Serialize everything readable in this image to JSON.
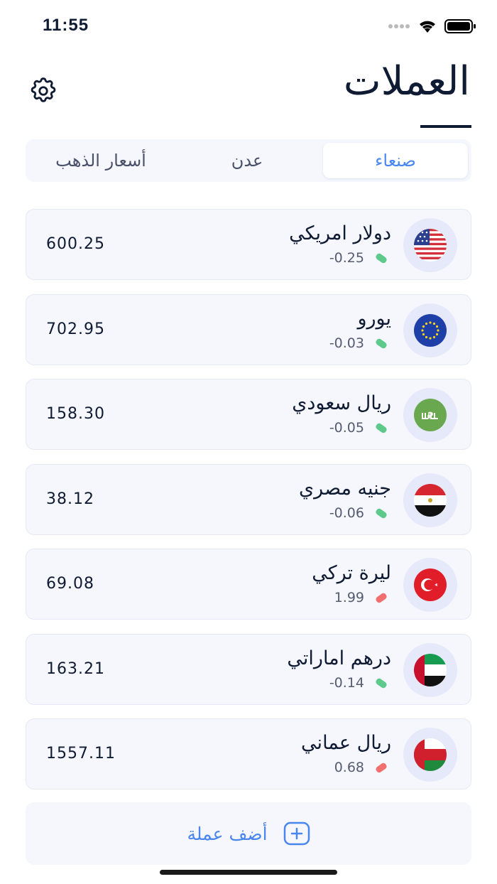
{
  "status": {
    "time": "11:55"
  },
  "header": {
    "title": "العملات",
    "settings_icon": "gear-icon"
  },
  "tabs": [
    {
      "label": "صنعاء",
      "active": true
    },
    {
      "label": "عدن",
      "active": false
    },
    {
      "label": "أسعار الذهب",
      "active": false
    }
  ],
  "colors": {
    "accent": "#4a86f0",
    "down": "#5dc98a",
    "up": "#f07070"
  },
  "currencies": [
    {
      "name": "دولار امريكي",
      "change": "-0.25",
      "direction": "down",
      "value": "600.25",
      "flag": "us-flag-icon"
    },
    {
      "name": "يورو",
      "change": "-0.03",
      "direction": "down",
      "value": "702.95",
      "flag": "eu-flag-icon"
    },
    {
      "name": "ريال سعودي",
      "change": "-0.05",
      "direction": "down",
      "value": "158.30",
      "flag": "sar-icon"
    },
    {
      "name": "جنيه مصري",
      "change": "-0.06",
      "direction": "down",
      "value": "38.12",
      "flag": "egypt-flag-icon"
    },
    {
      "name": "ليرة تركي",
      "change": "1.99",
      "direction": "up",
      "value": "69.08",
      "flag": "turkey-flag-icon"
    },
    {
      "name": "درهم اماراتي",
      "change": "-0.14",
      "direction": "down",
      "value": "163.21",
      "flag": "uae-flag-icon"
    },
    {
      "name": "ريال عماني",
      "change": "0.68",
      "direction": "up",
      "value": "1557.11",
      "flag": "oman-flag-icon"
    }
  ],
  "add_button": {
    "label": "أضف عملة"
  }
}
